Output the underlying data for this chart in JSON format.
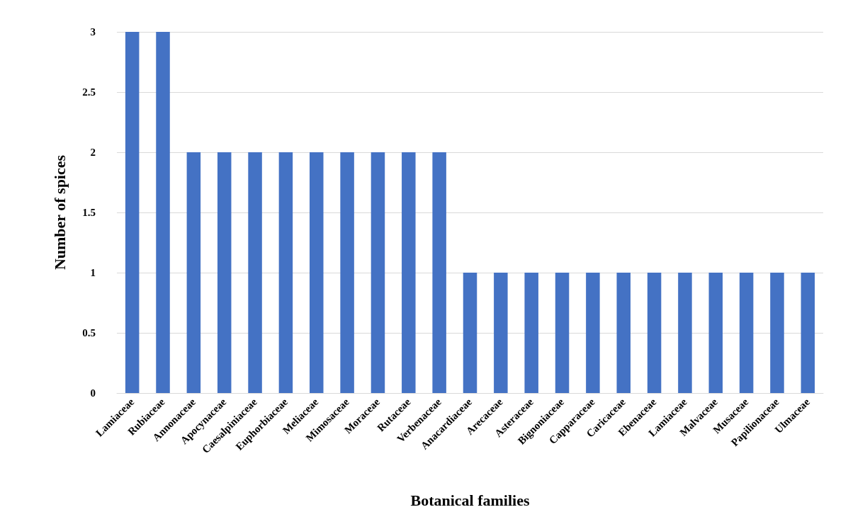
{
  "chart_data": {
    "type": "bar",
    "xlabel": "Botanical families",
    "ylabel": "Number of spices",
    "categories": [
      "Lamiaceae",
      "Rubiaceae",
      "Annonaceae",
      "Apocynaceae",
      "Caesalpiniaceae",
      "Euphorbiaceae",
      "Meliaceae",
      "Mimosaceae",
      "Moraceae",
      "Rutaceae",
      "Verbenaceae",
      "Anacardiaceae",
      "Arecaceae",
      "Asteraceae",
      "Bignoniaceae",
      "Capparaceae",
      "Caricaceae",
      "Ebenaceae",
      "Lamiaceae",
      "Malvaceae",
      "Musaceae",
      "Papilionaceae",
      "Ulmaceae"
    ],
    "values": [
      3,
      3,
      2,
      2,
      2,
      2,
      2,
      2,
      2,
      2,
      2,
      1,
      1,
      1,
      1,
      1,
      1,
      1,
      1,
      1,
      1,
      1,
      1
    ],
    "color": "#4472c4",
    "ylim": [
      0,
      3
    ],
    "yticks": [
      0,
      0.5,
      1,
      1.5,
      2,
      2.5,
      3
    ],
    "grid": "y"
  }
}
